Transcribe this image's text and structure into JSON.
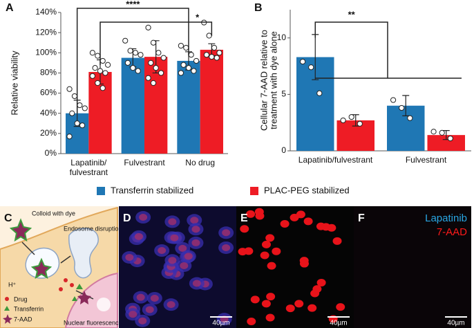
{
  "chart_data": [
    {
      "type": "bar",
      "panel": "A",
      "ylabel": "Relative viability",
      "categories": [
        "Lapatinib/ fulvestrant",
        "Fulvestrant",
        "No drug"
      ],
      "series": [
        {
          "name": "Transferrin stabilized",
          "color": "#1f77b4",
          "values": [
            40,
            95,
            92
          ],
          "errors": [
            13,
            9,
            9
          ],
          "points": [
            [
              64,
              57,
              48,
              45,
              40,
              30,
              28,
              17
            ],
            [
              112,
              102,
              100,
              98,
              90,
              85,
              82
            ],
            [
              107,
              105,
              98,
              92,
              88,
              85,
              82,
              80
            ]
          ]
        },
        {
          "name": "PLAC-PEG stabilized",
          "color": "#ee1c25",
          "values": [
            81,
            96,
            103
          ],
          "errors": [
            12,
            16,
            6
          ],
          "points": [
            [
              100,
              97,
              92,
              88,
              85,
              82,
              80,
              77,
              70,
              65
            ],
            [
              125,
              110,
              100,
              95,
              90,
              85,
              80,
              75,
              70
            ],
            [
              130,
              117,
              105,
              100,
              98,
              96,
              95
            ]
          ]
        }
      ],
      "ylim": [
        0,
        140
      ],
      "yticks": [
        {
          "value": 0,
          "label": "0%"
        },
        {
          "value": 20,
          "label": "20%"
        },
        {
          "value": 40,
          "label": "40%"
        },
        {
          "value": 60,
          "label": "60%"
        },
        {
          "value": 80,
          "label": "80%"
        },
        {
          "value": 100,
          "label": "100%"
        },
        {
          "value": 120,
          "label": "120%"
        },
        {
          "value": 140,
          "label": "140%"
        }
      ],
      "annotations": [
        "****",
        "*"
      ]
    },
    {
      "type": "bar",
      "panel": "B",
      "ylabel": [
        "Cellular 7-AAD relative to",
        "treatment with dye alone"
      ],
      "categories": [
        "Lapatinib/fulvestrant",
        "Fulvestrant"
      ],
      "series": [
        {
          "color": "#1f77b4",
          "values": [
            8.3,
            4.0
          ],
          "errors": [
            2.0,
            0.9
          ],
          "points": [
            [
              7.9,
              7.4,
              5.1
            ],
            [
              4.5,
              3.8,
              2.9
            ]
          ]
        },
        {
          "color": "#ee1c25",
          "values": [
            2.7,
            1.4
          ],
          "errors": [
            0.5,
            0.4
          ],
          "points": [
            [
              2.7,
              3.0,
              2.4
            ],
            [
              1.7,
              1.6,
              1.1
            ]
          ]
        }
      ],
      "ylim": [
        0,
        12.5
      ],
      "yticks": [
        0,
        5,
        10
      ],
      "annotations": [
        "**"
      ]
    }
  ],
  "diagram": {
    "panel": "C",
    "colloid": "Colloid with dye",
    "endosome": "Endosome disruption",
    "proton": "H⁺",
    "legend": [
      "Drug",
      "Transferrin",
      "7-AAD"
    ],
    "nucleus": "Nuclear fluorescence"
  },
  "images": [
    {
      "panel": "D",
      "scale": "40µm"
    },
    {
      "panel": "E",
      "scale": "40µm"
    },
    {
      "panel": "F",
      "scale": "40µm",
      "legend": [
        "Lapatinib",
        "7-AAD"
      ]
    }
  ]
}
